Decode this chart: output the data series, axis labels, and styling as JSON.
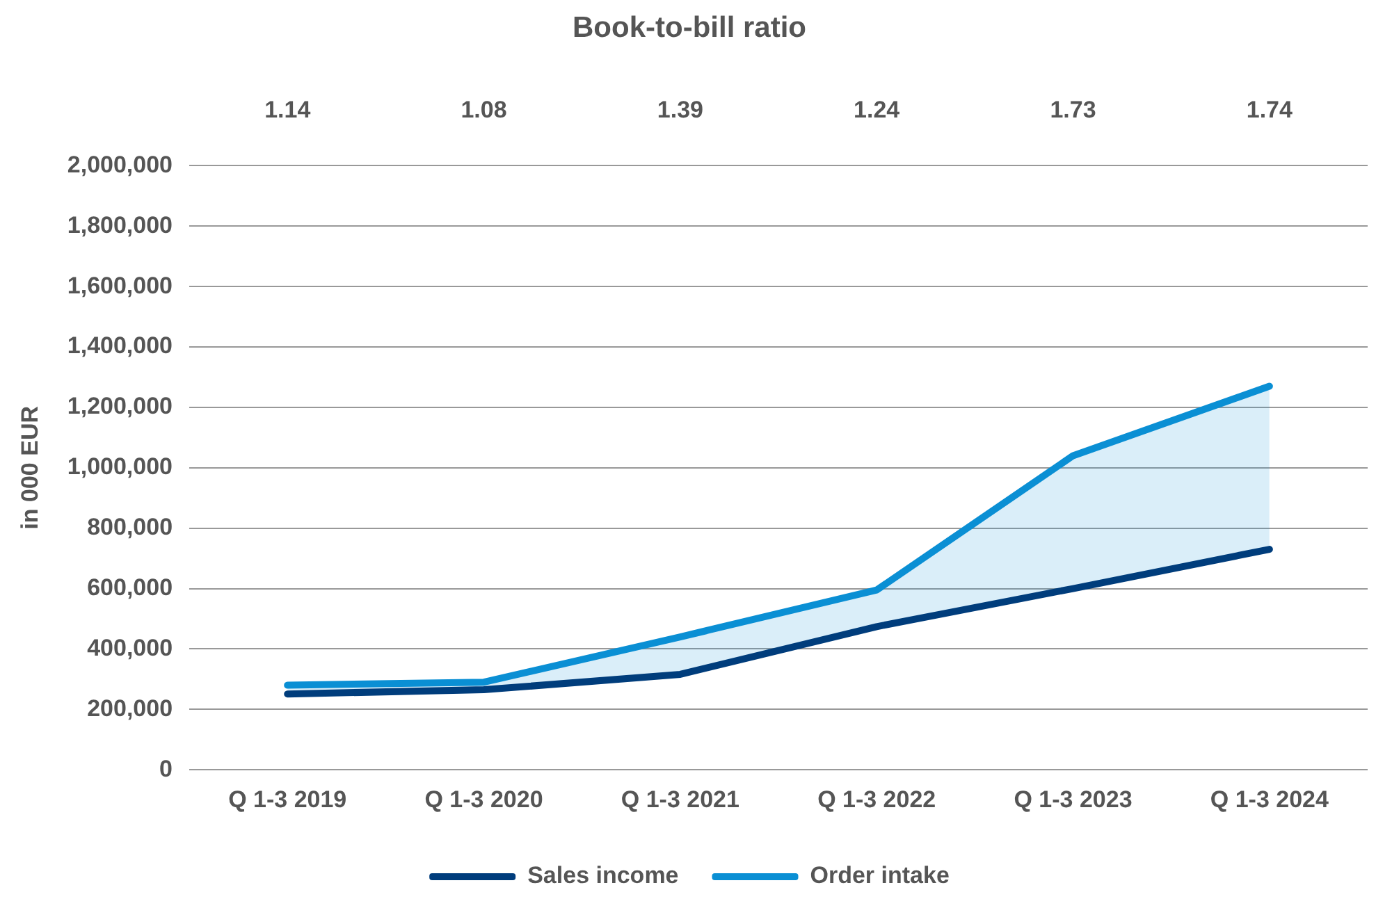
{
  "chart_data": {
    "type": "line",
    "title": "Book-to-bill ratio",
    "ylabel": "in 000 EUR",
    "categories": [
      "Q 1-3 2019",
      "Q 1-3 2020",
      "Q 1-3 2021",
      "Q 1-3 2022",
      "Q 1-3 2023",
      "Q 1-3 2024"
    ],
    "series": [
      {
        "name": "Sales income",
        "color": "#003d7c",
        "values": [
          251000,
          265000,
          316000,
          474000,
          600000,
          730000
        ]
      },
      {
        "name": "Order intake",
        "color": "#0a8fd4",
        "values": [
          280000,
          290000,
          440000,
          595000,
          1040000,
          1270000
        ],
        "lower": [
          251000,
          265000,
          316000,
          474000,
          600000,
          730000
        ],
        "upper": [
          280000,
          290000,
          440000,
          595000,
          1040000,
          1270000
        ]
      }
    ],
    "annotations": [
      "1.14",
      "1.08",
      "1.39",
      "1.24",
      "1.73",
      "1.74"
    ],
    "ylim": [
      0,
      2000000
    ],
    "yticks": [
      0,
      {
        "value": 200000,
        "label": "200,000"
      },
      {
        "value": 400000,
        "label": "400,000"
      },
      {
        "value": 600000,
        "label": "600,000"
      },
      {
        "value": 800000,
        "label": "800,000"
      },
      {
        "value": 1000000,
        "label": "1,000,000"
      },
      {
        "value": 1200000,
        "label": "1,200,000"
      },
      {
        "value": 1400000,
        "label": "1,400,000"
      },
      {
        "value": 1600000,
        "label": "1,600,000"
      },
      {
        "value": 1800000,
        "label": "1,800,000"
      },
      {
        "value": 2000000,
        "label": "2,000,000"
      }
    ],
    "grid": "y",
    "legend": "bottom",
    "marker": "none",
    "line_style": "solid"
  }
}
